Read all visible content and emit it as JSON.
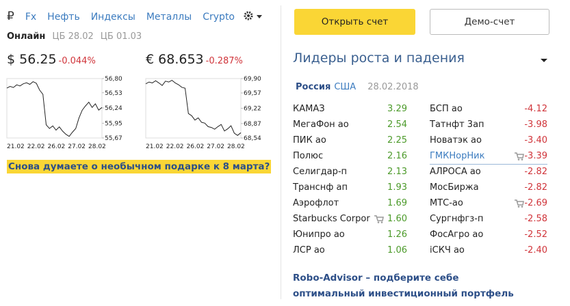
{
  "nav": {
    "currency_icon": "₽",
    "tabs": [
      "Fx",
      "Нефть",
      "Индексы",
      "Металлы",
      "Crypto"
    ]
  },
  "status": {
    "online": "Онлайн",
    "cb1": "ЦБ 28.02",
    "cb2": "ЦБ 01.03"
  },
  "quotes": [
    {
      "symbol": "$",
      "price": "56.25",
      "change": "-0.044%"
    },
    {
      "symbol": "€",
      "price": "68.653",
      "change": "-0.287%"
    }
  ],
  "charts": [
    {
      "type": "line",
      "categories": [
        "21.02",
        "22.02",
        "26.02",
        "27.02",
        "28.02"
      ],
      "ylim": [
        55.67,
        56.8
      ],
      "yticks": [
        {
          "value": 56.8,
          "label": "56,80"
        },
        {
          "value": 56.53,
          "label": "56,53"
        },
        {
          "value": 56.24,
          "label": "56,24"
        },
        {
          "value": 55.95,
          "label": "55,95"
        },
        {
          "value": 55.67,
          "label": "55,67"
        }
      ],
      "color": "#222222",
      "values": [
        56.62,
        56.65,
        56.63,
        56.68,
        56.66,
        56.7,
        56.72,
        56.69,
        56.74,
        56.71,
        56.58,
        56.5,
        55.92,
        55.85,
        55.9,
        55.82,
        55.88,
        55.8,
        55.74,
        55.7,
        55.78,
        55.85,
        56.05,
        56.2,
        56.28,
        56.35,
        56.25,
        56.32,
        56.2,
        56.25
      ]
    },
    {
      "type": "line",
      "categories": [
        "21.02",
        "22.02",
        "26.02",
        "27.02",
        "28.02"
      ],
      "ylim": [
        68.54,
        69.9
      ],
      "yticks": [
        {
          "value": 69.9,
          "label": "69,90"
        },
        {
          "value": 69.57,
          "label": "69,57"
        },
        {
          "value": 69.22,
          "label": "69,22"
        },
        {
          "value": 68.87,
          "label": "68,87"
        },
        {
          "value": 68.54,
          "label": "68,54"
        }
      ],
      "color": "#222222",
      "values": [
        69.78,
        69.82,
        69.8,
        69.85,
        69.8,
        69.74,
        69.84,
        69.82,
        69.86,
        69.8,
        69.76,
        69.7,
        69.68,
        69.1,
        69.05,
        68.95,
        69.0,
        68.9,
        68.88,
        68.8,
        68.78,
        68.74,
        68.8,
        68.85,
        68.7,
        68.75,
        68.82,
        68.65,
        68.6,
        68.66
      ]
    }
  ],
  "promo": "Снова думаете о необычном подарке к 8 марта?",
  "buttons": {
    "open": "Открыть счет",
    "demo": "Демо-счет"
  },
  "leaders": {
    "title": "Лидеры роста и падения",
    "tabs": [
      "Россия",
      "США"
    ],
    "date": "28.02.2018",
    "gainers": [
      {
        "name": "КАМАЗ",
        "value": "3.29"
      },
      {
        "name": "МегаФон ао",
        "value": "2.54"
      },
      {
        "name": "ПИК ао",
        "value": "2.25"
      },
      {
        "name": "Полюс",
        "value": "2.16"
      },
      {
        "name": "Селигдар-п",
        "value": "2.13"
      },
      {
        "name": "Транснф ап",
        "value": "1.93"
      },
      {
        "name": "Аэрофлот",
        "value": "1.69"
      },
      {
        "name": "Starbucks Corpor",
        "value": "1.60",
        "cart": true
      },
      {
        "name": "Юнипро ао",
        "value": "1.26"
      },
      {
        "name": "ЛСР ао",
        "value": "1.06"
      }
    ],
    "losers": [
      {
        "name": "БСП ао",
        "value": "-4.12"
      },
      {
        "name": "Татнфт 3ап",
        "value": "-3.98"
      },
      {
        "name": "Новатэк ао",
        "value": "-3.40"
      },
      {
        "name": "ГМКНорНик",
        "value": "-3.39",
        "cart": true,
        "selected": true
      },
      {
        "name": "АЛРОСА ао",
        "value": "-2.82"
      },
      {
        "name": "МосБиржа",
        "value": "-2.82"
      },
      {
        "name": "МТС-ао",
        "value": "-2.69",
        "cart": true
      },
      {
        "name": "Сургнфгз-п",
        "value": "-2.58"
      },
      {
        "name": "ФосАгро ао",
        "value": "-2.52"
      },
      {
        "name": "iСКЧ ао",
        "value": "-2.40"
      }
    ]
  },
  "footer": "Robo-Advisor – подберите себе оптимальный инвестиционный портфель"
}
